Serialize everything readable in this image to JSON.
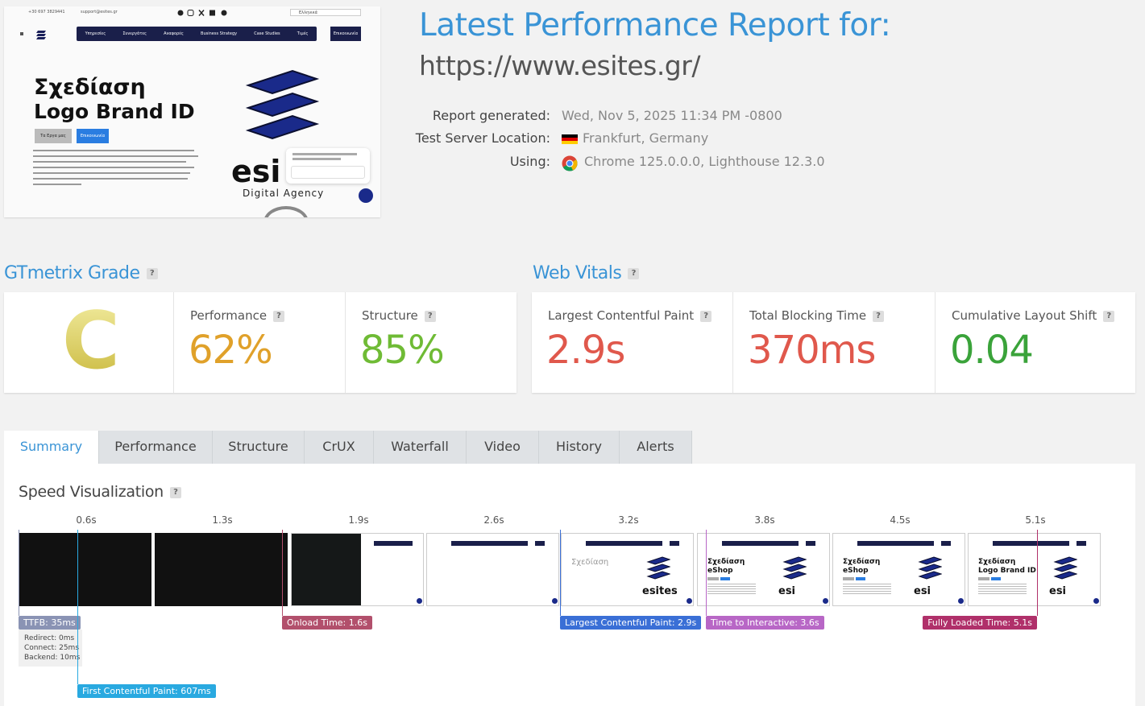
{
  "preview": {
    "phone": "+30 697 3829441",
    "email": "support@esites.gr",
    "language": "Ελληνικά",
    "nav": [
      "Υπηρεσίες",
      "Συνεργάτες",
      "Αναφορές",
      "Business Strategy",
      "Case Studies",
      "Τιμές"
    ],
    "cta": "Επικοινωνία",
    "heading": [
      "Σχεδίαση",
      "Logo Brand ID"
    ],
    "buttons": [
      "Τα Εργα μας",
      "Επικοινωνία"
    ],
    "brand": "esi",
    "tagline": "Digital Agency"
  },
  "report": {
    "title": "Latest Performance Report for:",
    "url": "https://www.esites.gr/",
    "details": [
      {
        "label": "Report generated:",
        "value": "Wed, Nov 5, 2025 11:34 PM -0800"
      },
      {
        "label": "Test Server Location:",
        "value": "Frankfurt, Germany"
      },
      {
        "label": "Using:",
        "value": "Chrome 125.0.0.0, Lighthouse 12.3.0"
      }
    ]
  },
  "help": "?",
  "grade": {
    "title": "GTmetrix Grade",
    "grade": "C",
    "metrics": [
      {
        "label": "Performance",
        "value": "62%"
      },
      {
        "label": "Structure",
        "value": "85%"
      }
    ]
  },
  "vitals": {
    "title": "Web Vitals",
    "metrics": [
      {
        "label": "Largest Contentful Paint",
        "value": "2.9s"
      },
      {
        "label": "Total Blocking Time",
        "value": "370ms"
      },
      {
        "label": "Cumulative Layout Shift",
        "value": "0.04"
      }
    ]
  },
  "tabs": [
    "Summary",
    "Performance",
    "Structure",
    "CrUX",
    "Waterfall",
    "Video",
    "History",
    "Alerts"
  ],
  "speed": {
    "title": "Speed Visualization",
    "frames": [
      {
        "time": "0.6s"
      },
      {
        "time": "1.3s"
      },
      {
        "time": "1.9s"
      },
      {
        "time": "2.6s"
      },
      {
        "time": "3.2s",
        "lines": [
          "Σχεδίαση"
        ],
        "brand": "esites"
      },
      {
        "time": "3.8s",
        "lines": [
          "Σχεδίαση",
          "eShop"
        ],
        "brand": "esi"
      },
      {
        "time": "4.5s",
        "lines": [
          "Σχεδίαση",
          "eShop"
        ],
        "brand": "esi"
      },
      {
        "time": "5.1s",
        "lines": [
          "Σχεδίαση",
          "Logo Brand ID"
        ],
        "brand": "esi"
      }
    ],
    "markers": {
      "ttfb": {
        "label": "TTFB: 35ms",
        "details": [
          "Redirect: 0ms",
          "Connect: 25ms",
          "Backend: 10ms"
        ]
      },
      "fcp": "First Contentful Paint: 607ms",
      "onload": "Onload Time: 1.6s",
      "lcp": "Largest Contentful Paint: 2.9s",
      "tti": "Time to Interactive: 3.6s",
      "fully": "Fully Loaded Time: 5.1s"
    }
  }
}
